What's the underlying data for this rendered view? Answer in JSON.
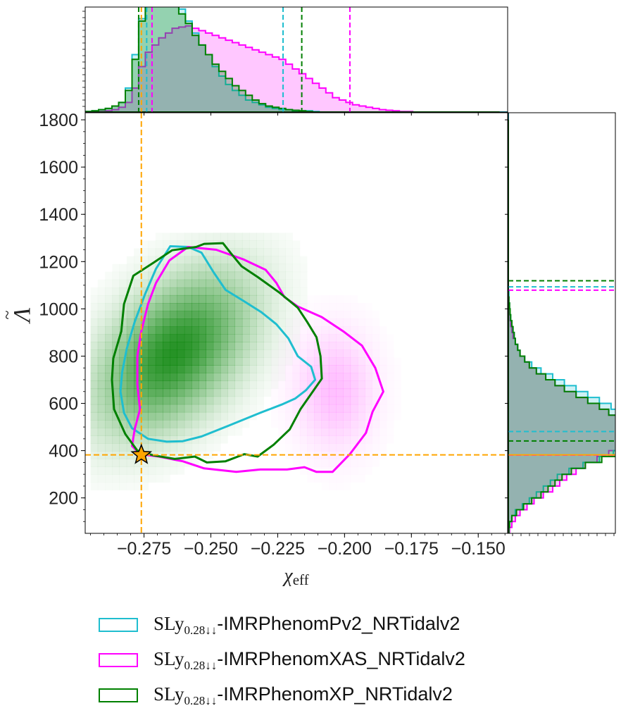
{
  "chart_data": {
    "type": "scatter",
    "subtype": "corner-plot",
    "xlabel": "χ_eff",
    "ylabel": "Λ̃",
    "xlim": [
      -0.297,
      -0.139
    ],
    "ylim": [
      50,
      1830
    ],
    "x_ticks": [
      "−0.275",
      "−0.250",
      "−0.225",
      "−0.200",
      "−0.175",
      "−0.150"
    ],
    "x_tick_values": [
      -0.275,
      -0.25,
      -0.225,
      -0.2,
      -0.175,
      -0.15
    ],
    "y_ticks": [
      "200",
      "400",
      "600",
      "800",
      "1000",
      "1200",
      "1400",
      "1600",
      "1800"
    ],
    "y_tick_values": [
      200,
      400,
      600,
      800,
      1000,
      1200,
      1400,
      1600,
      1800
    ],
    "injection": {
      "x": -0.276,
      "y": 382,
      "marker": "star",
      "color": "#FFA500",
      "line_color": "#FFA500"
    },
    "series": [
      {
        "name": "SLy0.28↓↓-IMRPhenomPv2_NRTidalv2",
        "legend_prefix": "SLy",
        "legend_sub": "0.28↓↓",
        "legend_rest": "-IMRPhenomPv2_NRTidalv2",
        "color": "#1FBECF",
        "x_interval": [
          -0.274,
          -0.223
        ],
        "y_interval": [
          481,
          1093
        ],
        "contour": [
          [
            -0.2652,
            1265
          ],
          [
            -0.2585,
            1262
          ],
          [
            -0.2535,
            1238
          ],
          [
            -0.249,
            1155
          ],
          [
            -0.2445,
            1080
          ],
          [
            -0.238,
            1035
          ],
          [
            -0.231,
            985
          ],
          [
            -0.2255,
            935
          ],
          [
            -0.221,
            875
          ],
          [
            -0.2175,
            800
          ],
          [
            -0.2125,
            755
          ],
          [
            -0.211,
            700
          ],
          [
            -0.2145,
            655
          ],
          [
            -0.2185,
            620
          ],
          [
            -0.2235,
            595
          ],
          [
            -0.2315,
            560
          ],
          [
            -0.2435,
            505
          ],
          [
            -0.2535,
            460
          ],
          [
            -0.2605,
            440
          ],
          [
            -0.2665,
            438
          ],
          [
            -0.2735,
            450
          ],
          [
            -0.2795,
            495
          ],
          [
            -0.2825,
            560
          ],
          [
            -0.2838,
            650
          ],
          [
            -0.2832,
            730
          ],
          [
            -0.2815,
            830
          ],
          [
            -0.2785,
            945
          ],
          [
            -0.2745,
            1065
          ],
          [
            -0.2705,
            1170
          ]
        ]
      },
      {
        "name": "SLy0.28↓↓-IMRPhenomXAS_NRTidalv2",
        "legend_prefix": "SLy",
        "legend_sub": "0.28↓↓",
        "legend_rest": "-IMRPhenomXAS_NRTidalv2",
        "color": "#FF00FF",
        "x_interval": [
          -0.272,
          -0.198
        ],
        "y_interval": [
          381,
          1079
        ],
        "contour": [
          [
            -0.2705,
            1110
          ],
          [
            -0.2655,
            1205
          ],
          [
            -0.2585,
            1262
          ],
          [
            -0.248,
            1250
          ],
          [
            -0.238,
            1210
          ],
          [
            -0.2295,
            1165
          ],
          [
            -0.2255,
            1110
          ],
          [
            -0.2225,
            1050
          ],
          [
            -0.2175,
            1010
          ],
          [
            -0.2085,
            965
          ],
          [
            -0.2005,
            905
          ],
          [
            -0.1935,
            845
          ],
          [
            -0.1885,
            750
          ],
          [
            -0.1855,
            650
          ],
          [
            -0.1895,
            565
          ],
          [
            -0.192,
            475
          ],
          [
            -0.198,
            385
          ],
          [
            -0.2045,
            310
          ],
          [
            -0.2105,
            310
          ],
          [
            -0.215,
            330
          ],
          [
            -0.2215,
            320
          ],
          [
            -0.2315,
            320
          ],
          [
            -0.2405,
            310
          ],
          [
            -0.2525,
            325
          ],
          [
            -0.2605,
            355
          ],
          [
            -0.2695,
            375
          ],
          [
            -0.2765,
            385
          ],
          [
            -0.2795,
            420
          ],
          [
            -0.2785,
            490
          ],
          [
            -0.2765,
            575
          ],
          [
            -0.2775,
            680
          ],
          [
            -0.2775,
            800
          ],
          [
            -0.276,
            905
          ],
          [
            -0.2735,
            1020
          ]
        ]
      },
      {
        "name": "SLy0.28↓↓-IMRPhenomXP_NRTidalv2",
        "legend_prefix": "SLy",
        "legend_sub": "0.28↓↓",
        "legend_rest": "-IMRPhenomXP_NRTidalv2",
        "color": "#008000",
        "x_interval": [
          -0.277,
          -0.216
        ],
        "y_interval": [
          441,
          1119
        ],
        "contour": [
          [
            -0.2715,
            1195
          ],
          [
            -0.2645,
            1248
          ],
          [
            -0.2555,
            1262
          ],
          [
            -0.2525,
            1275
          ],
          [
            -0.2455,
            1278
          ],
          [
            -0.2425,
            1235
          ],
          [
            -0.2385,
            1180
          ],
          [
            -0.2325,
            1135
          ],
          [
            -0.2245,
            1070
          ],
          [
            -0.2175,
            1005
          ],
          [
            -0.214,
            945
          ],
          [
            -0.2105,
            880
          ],
          [
            -0.209,
            800
          ],
          [
            -0.2085,
            705
          ],
          [
            -0.2125,
            640
          ],
          [
            -0.2165,
            575
          ],
          [
            -0.2205,
            490
          ],
          [
            -0.2265,
            425
          ],
          [
            -0.2325,
            375
          ],
          [
            -0.2375,
            385
          ],
          [
            -0.2445,
            355
          ],
          [
            -0.2515,
            350
          ],
          [
            -0.256,
            375
          ],
          [
            -0.2635,
            365
          ],
          [
            -0.2715,
            380
          ],
          [
            -0.2775,
            400
          ],
          [
            -0.282,
            470
          ],
          [
            -0.2862,
            575
          ],
          [
            -0.287,
            700
          ],
          [
            -0.2865,
            790
          ],
          [
            -0.2835,
            905
          ],
          [
            -0.2825,
            1020
          ],
          [
            -0.279,
            1140
          ]
        ]
      }
    ],
    "density_2d": {
      "colormap": "Greens",
      "peak": {
        "x": -0.265,
        "y": 800
      },
      "secondary_colormap": "magenta",
      "secondary_peak": {
        "x": -0.205,
        "y": 640
      }
    },
    "histogram_x": {
      "bin_edges_start": -0.297,
      "bin_width": 0.0025,
      "PhenomPv2": [
        0.5,
        1,
        2,
        3,
        5,
        8,
        20,
        48,
        78,
        98,
        99,
        100,
        98,
        94,
        86,
        76,
        66,
        56,
        48,
        38,
        30,
        23,
        18,
        14,
        10,
        8,
        6,
        4,
        3,
        2,
        2,
        1,
        1,
        1,
        0.5,
        0,
        0,
        0,
        0,
        0,
        0,
        0,
        0,
        0,
        0,
        0,
        0,
        0,
        0,
        0,
        0,
        0,
        0,
        0,
        0,
        0,
        0,
        0,
        0,
        0,
        0,
        0,
        0,
        0
      ],
      "PhenomXAS": [
        0,
        0,
        0.5,
        1,
        2,
        4,
        8,
        20,
        38,
        50,
        56,
        62,
        66,
        70,
        71,
        72,
        70,
        68,
        66,
        64,
        62,
        60,
        58,
        56,
        54,
        52,
        50,
        48,
        46,
        44,
        40,
        36,
        32,
        28,
        24,
        20,
        16,
        12,
        10,
        8,
        6,
        5,
        4,
        3,
        2,
        1.5,
        1,
        0.5,
        0.5,
        0,
        0,
        0,
        0,
        0,
        0,
        0,
        0,
        0,
        0,
        0,
        0,
        0,
        0,
        0
      ],
      "PhenomXP": [
        0.5,
        1,
        2,
        3,
        5,
        8,
        18,
        44,
        76,
        96,
        98,
        99,
        96,
        90,
        82,
        74,
        64,
        56,
        48,
        40,
        34,
        28,
        22,
        18,
        14,
        10,
        7,
        5,
        4,
        3,
        2,
        1.5,
        1,
        0.5,
        0,
        0,
        0,
        0,
        0,
        0,
        0,
        0,
        0,
        0,
        0,
        0,
        0,
        0,
        0,
        0,
        0,
        0,
        0,
        0,
        0,
        0,
        0,
        0,
        0,
        0,
        0,
        0
      ]
    },
    "histogram_y": {
      "bin_edges_start": 50,
      "bin_width": 25,
      "PhenomPv2": [
        0.5,
        1,
        3,
        6,
        12,
        18,
        24,
        30,
        36,
        42,
        52,
        64,
        78,
        90,
        100,
        104,
        108,
        110,
        108,
        104,
        96,
        88,
        78,
        68,
        58,
        48,
        38,
        28,
        20,
        14,
        10,
        8,
        6,
        5,
        4,
        3,
        2,
        1.5,
        1,
        0.5,
        0.5,
        0,
        0,
        0,
        0,
        0,
        0,
        0,
        0,
        0,
        0,
        0,
        0,
        0,
        0,
        0,
        0,
        0,
        0,
        0,
        0,
        0,
        0,
        0,
        0,
        0,
        0,
        0,
        0,
        0,
        0,
        0
      ],
      "PhenomXAS": [
        1,
        3,
        6,
        10,
        16,
        22,
        30,
        38,
        44,
        50,
        58,
        66,
        76,
        86,
        94,
        100,
        104,
        104,
        100,
        94,
        86,
        78,
        68,
        58,
        48,
        40,
        32,
        24,
        18,
        14,
        10,
        8,
        6,
        4,
        3,
        2,
        1.5,
        1,
        0.5,
        0.5,
        0,
        0,
        0,
        0,
        0,
        0,
        0,
        0,
        0,
        0,
        0,
        0,
        0,
        0,
        0,
        0,
        0,
        0,
        0,
        0,
        0,
        0,
        0,
        0,
        0,
        0,
        0,
        0,
        0,
        0,
        0
      ],
      "PhenomXP": [
        0.5,
        1,
        3,
        7,
        13,
        20,
        28,
        34,
        40,
        46,
        54,
        66,
        80,
        92,
        100,
        104,
        106,
        104,
        100,
        94,
        86,
        78,
        68,
        58,
        48,
        40,
        32,
        24,
        18,
        14,
        10,
        8,
        6,
        5,
        4,
        3,
        2,
        1.5,
        1,
        0.5,
        0,
        0,
        0,
        0,
        0,
        0,
        0,
        0,
        0,
        0,
        0,
        0,
        0,
        0,
        0,
        0,
        0,
        0,
        0,
        0,
        0,
        0,
        0,
        0,
        0,
        0,
        0,
        0,
        0,
        0
      ]
    }
  }
}
